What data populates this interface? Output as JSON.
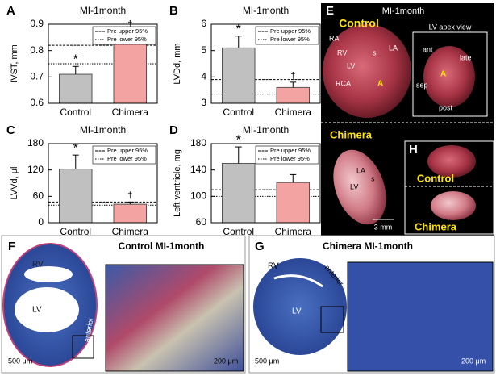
{
  "chart_data": [
    {
      "type": "bar",
      "label": "A",
      "title": "MI-1month",
      "y_label": "IVST, mm",
      "categories": [
        "Control",
        "Chimera"
      ],
      "values": [
        0.71,
        0.85
      ],
      "errors": [
        0.03,
        0.025
      ],
      "colors": [
        "#c0c0c0",
        "#f4a3a3"
      ],
      "ylim": [
        0.6,
        0.9
      ],
      "yticks": [
        0.6,
        0.7,
        0.8,
        0.9
      ],
      "reference_lines": [
        {
          "name": "Pre upper 95%",
          "value": 0.82
        },
        {
          "name": "Pre lower 95%",
          "value": 0.75
        }
      ],
      "significance": [
        "*",
        "†"
      ]
    },
    {
      "type": "bar",
      "label": "B",
      "title": "MI-1month",
      "y_label": "LVDd, mm",
      "categories": [
        "Control",
        "Chimera"
      ],
      "values": [
        5.1,
        3.6
      ],
      "errors": [
        0.45,
        0.2
      ],
      "colors": [
        "#c0c0c0",
        "#f4a3a3"
      ],
      "ylim": [
        3,
        6
      ],
      "yticks": [
        3,
        4,
        5,
        6
      ],
      "reference_lines": [
        {
          "name": "Pre upper 95%",
          "value": 3.9
        },
        {
          "name": "Pre lower 95%",
          "value": 3.35
        }
      ],
      "significance": [
        "*",
        "†"
      ]
    },
    {
      "type": "bar",
      "label": "C",
      "title": "MI-1month",
      "y_label": "LVVd, μl",
      "categories": [
        "Control",
        "Chimera"
      ],
      "values": [
        122,
        42
      ],
      "errors": [
        32,
        5
      ],
      "colors": [
        "#c0c0c0",
        "#f4a3a3"
      ],
      "ylim": [
        0,
        180
      ],
      "yticks": [
        0,
        60,
        120,
        180
      ],
      "reference_lines": [
        {
          "name": "Pre upper 95%",
          "value": 47
        },
        {
          "name": "Pre lower 95%",
          "value": 40
        }
      ],
      "significance": [
        "*",
        "†"
      ]
    },
    {
      "type": "bar",
      "label": "D",
      "title": "MI-1month",
      "y_label": "Left ventricle, mg",
      "categories": [
        "Control",
        "Chimera"
      ],
      "values": [
        150,
        121
      ],
      "errors": [
        25,
        12
      ],
      "colors": [
        "#c0c0c0",
        "#f4a3a3"
      ],
      "ylim": [
        60,
        180
      ],
      "yticks": [
        60,
        100,
        140,
        180
      ],
      "reference_lines": [
        {
          "name": "Pre upper 95%",
          "value": 110
        },
        {
          "name": "Pre lower 95%",
          "value": 100
        }
      ],
      "significance": [
        "*",
        null
      ]
    }
  ],
  "photo_panels": {
    "E": {
      "label": "E",
      "title": "MI-1month",
      "top_heading": "Control",
      "top_labels": [
        "RA",
        "RV",
        "LV",
        "s",
        "LA",
        "RCA",
        "A"
      ],
      "inset_title": "LV apex view",
      "inset_labels": [
        "ant",
        "late",
        "A",
        "sep",
        "post"
      ],
      "bottom_heading": "Chimera",
      "bottom_labels": [
        "LA",
        "LV",
        "s"
      ],
      "scale": "3 mm"
    },
    "H": {
      "label": "H",
      "top": "Control",
      "bottom": "Chimera"
    },
    "F": {
      "label": "F",
      "title": "Control MI-1month",
      "labels": [
        "RV",
        "LV",
        "anterior"
      ],
      "scale_left": "500 μm",
      "scale_right": "200 μm"
    },
    "G": {
      "label": "G",
      "title": "Chimera MI-1month",
      "labels": [
        "RV",
        "anterior",
        "LV"
      ],
      "scale_left": "500 μm",
      "scale_right": "200 μm"
    }
  }
}
